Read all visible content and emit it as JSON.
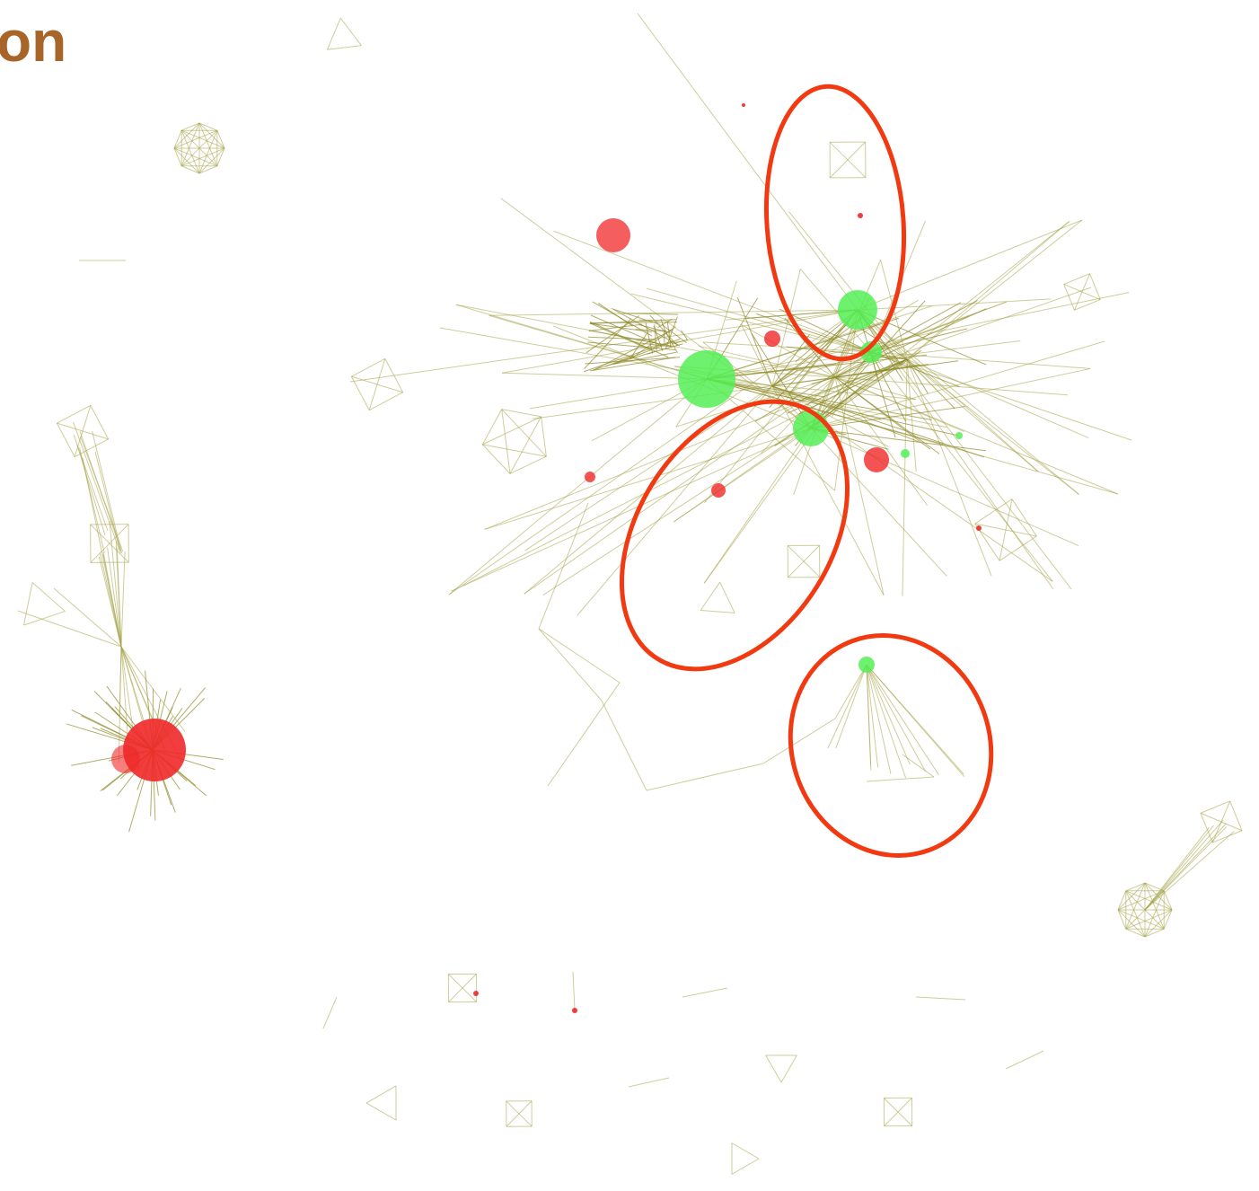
{
  "title": "on"
}
